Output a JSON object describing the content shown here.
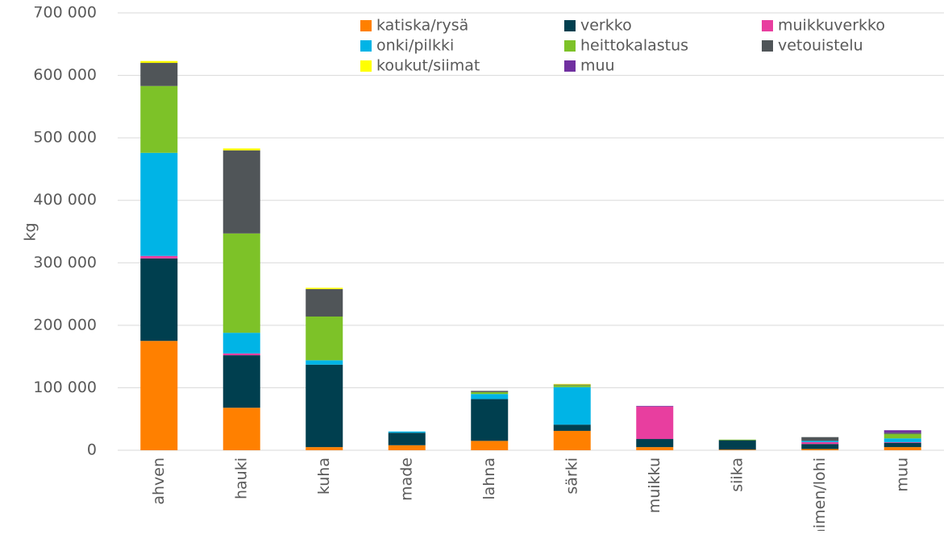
{
  "chart_data": {
    "type": "stacked_bar",
    "y_label": "kg",
    "categories": [
      "ahven",
      "hauki",
      "kuha",
      "made",
      "lahna",
      "särki",
      "muikku",
      "siika",
      "taimen/lohi",
      "muu"
    ],
    "series": [
      {
        "name": "katiska/rysä",
        "color": "#ff8000",
        "values": [
          175000,
          68000,
          5000,
          8000,
          15000,
          31000,
          5000,
          1000,
          2000,
          5000
        ]
      },
      {
        "name": "verkko",
        "color": "#003f4f",
        "values": [
          132000,
          84000,
          132000,
          20000,
          67000,
          10000,
          13000,
          15000,
          8000,
          7000
        ]
      },
      {
        "name": "muikkuverkko",
        "color": "#e83e9f",
        "values": [
          4000,
          3000,
          0,
          0,
          0,
          0,
          52000,
          0,
          3000,
          1000
        ]
      },
      {
        "name": "onki/pilkki",
        "color": "#00b4e6",
        "values": [
          165000,
          33000,
          7000,
          2000,
          8000,
          60000,
          0,
          0,
          2000,
          6000
        ]
      },
      {
        "name": "heittokalastus",
        "color": "#7dc228",
        "values": [
          107000,
          159000,
          70000,
          0,
          3000,
          3000,
          0,
          1000,
          0,
          7000
        ]
      },
      {
        "name": "vetouistelu",
        "color": "#505558",
        "values": [
          37000,
          133000,
          44000,
          0,
          2000,
          1000,
          0,
          0,
          6000,
          2000
        ]
      },
      {
        "name": "koukut/siimat",
        "color": "#ffff00",
        "values": [
          3000,
          3000,
          2000,
          0,
          0,
          1000,
          0,
          0,
          0,
          0
        ]
      },
      {
        "name": "muu",
        "color": "#7030a0",
        "values": [
          0,
          0,
          0,
          0,
          0,
          0,
          1000,
          0,
          0,
          4000
        ]
      }
    ],
    "ylim": [
      0,
      700000
    ],
    "yticks": [
      0,
      {
        "value": 100000,
        "label": "100 000"
      },
      {
        "value": 200000,
        "label": "200 000"
      },
      {
        "value": 300000,
        "label": "300 000"
      },
      {
        "value": 400000,
        "label": "400 000"
      },
      {
        "value": 500000,
        "label": "500 000"
      },
      {
        "value": 600000,
        "label": "600 000"
      },
      {
        "value": 700000,
        "label": "700 000"
      }
    ],
    "grid": true,
    "legend": "top"
  }
}
